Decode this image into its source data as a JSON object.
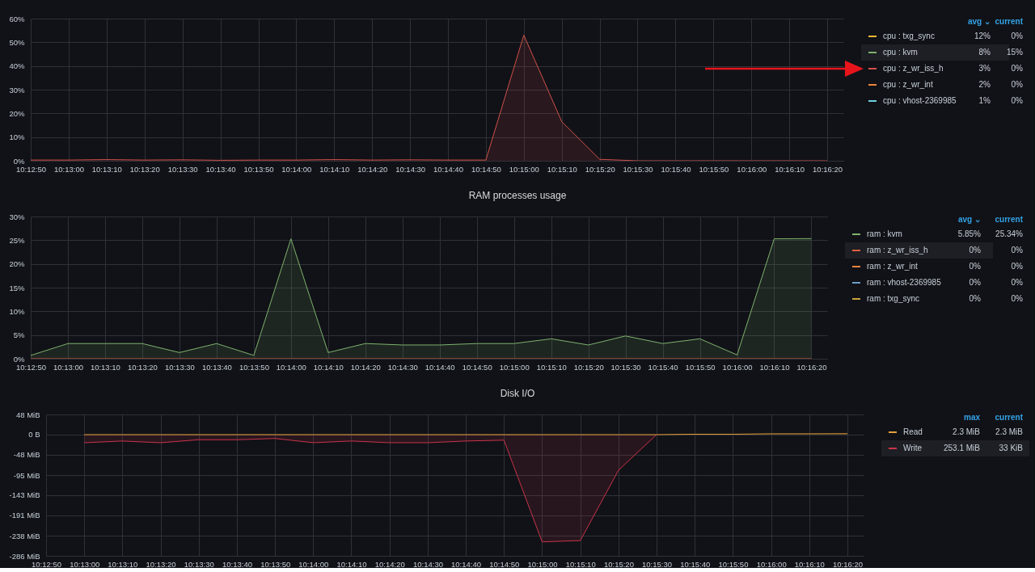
{
  "chart_data": [
    {
      "type": "area",
      "x": [
        10.21389,
        10.21667,
        10.21944,
        10.22222,
        10.225,
        10.22778,
        10.23056,
        10.23333,
        10.23611,
        10.23889,
        10.24167,
        10.24444,
        10.24722,
        10.25,
        10.25278,
        10.25556,
        10.25833,
        10.26111,
        10.26389,
        10.26667,
        10.26944,
        10.27222
      ],
      "xlim": [
        10.21389,
        10.2734
      ],
      "xticks": [
        {
          "value": 10.21389,
          "label": "10:12:50"
        },
        {
          "value": 10.21667,
          "label": "10:13:00"
        },
        {
          "value": 10.21944,
          "label": "10:13:10"
        },
        {
          "value": 10.22222,
          "label": "10:13:20"
        },
        {
          "value": 10.225,
          "label": "10:13:30"
        },
        {
          "value": 10.22778,
          "label": "10:13:40"
        },
        {
          "value": 10.23056,
          "label": "10:13:50"
        },
        {
          "value": 10.23333,
          "label": "10:14:00"
        },
        {
          "value": 10.23611,
          "label": "10:14:10"
        },
        {
          "value": 10.23889,
          "label": "10:14:20"
        },
        {
          "value": 10.24167,
          "label": "10:14:30"
        },
        {
          "value": 10.24444,
          "label": "10:14:40"
        },
        {
          "value": 10.24722,
          "label": "10:14:50"
        },
        {
          "value": 10.25,
          "label": "10:15:00"
        },
        {
          "value": 10.25278,
          "label": "10:15:10"
        },
        {
          "value": 10.25556,
          "label": "10:15:20"
        },
        {
          "value": 10.25833,
          "label": "10:15:30"
        },
        {
          "value": 10.26111,
          "label": "10:15:40"
        },
        {
          "value": 10.26389,
          "label": "10:15:50"
        },
        {
          "value": 10.26667,
          "label": "10:16:00"
        },
        {
          "value": 10.26944,
          "label": "10:16:10"
        },
        {
          "value": 10.27222,
          "label": "10:16:20"
        }
      ],
      "ylim": [
        0,
        60
      ],
      "yticks": [
        {
          "value": 0,
          "label": "0%"
        },
        {
          "value": 10,
          "label": "10%"
        },
        {
          "value": 20,
          "label": "20%"
        },
        {
          "value": 30,
          "label": "30%"
        },
        {
          "value": 40,
          "label": "40%"
        },
        {
          "value": 50,
          "label": "50%"
        },
        {
          "value": 60,
          "label": "60%"
        }
      ],
      "series": [
        {
          "name": "cpu : txg_sync",
          "color": "#EAB839",
          "values": [
            null,
            null,
            null,
            null,
            null,
            null,
            null,
            null,
            null,
            null,
            null,
            null,
            null,
            null,
            null,
            null,
            null,
            null,
            null,
            null,
            null,
            null
          ]
        },
        {
          "name": "cpu : kvm",
          "color": "#7EB26D",
          "values": [
            null,
            null,
            null,
            null,
            null,
            null,
            null,
            null,
            null,
            null,
            null,
            null,
            null,
            null,
            null,
            null,
            null,
            null,
            null,
            null,
            null,
            null
          ]
        },
        {
          "name": "cpu : z_wr_iss_h",
          "color": "#D0504A",
          "values": [
            0.3,
            0.3,
            0.5,
            0.3,
            0.4,
            0.2,
            0.3,
            0.3,
            0.5,
            0.3,
            0.4,
            0.3,
            0.3,
            53,
            16.5,
            0.6,
            0,
            0,
            0,
            0,
            0,
            0
          ]
        },
        {
          "name": "cpu : z_wr_int",
          "color": "#EF843C",
          "values": [
            null,
            null,
            null,
            null,
            null,
            null,
            null,
            null,
            null,
            null,
            null,
            null,
            null,
            null,
            null,
            null,
            null,
            null,
            null,
            null,
            null,
            null
          ]
        },
        {
          "name": "cpu : vhost-2369985",
          "color": "#6ED0E0",
          "values": [
            null,
            null,
            null,
            null,
            null,
            null,
            null,
            null,
            null,
            null,
            null,
            null,
            null,
            null,
            null,
            null,
            null,
            null,
            null,
            null,
            null,
            null
          ]
        }
      ],
      "annotations": [
        "avg ⌄",
        "current",
        "12%",
        "0%",
        "8%",
        "15%",
        "3%",
        "0%",
        "2%",
        "0%",
        "1%",
        "0%"
      ],
      "grid": true,
      "legend": "right"
    },
    {
      "type": "area",
      "title": "RAM processes usage",
      "x": [
        10.21389,
        10.21667,
        10.21944,
        10.22222,
        10.225,
        10.22778,
        10.23056,
        10.23333,
        10.23611,
        10.23889,
        10.24167,
        10.24444,
        10.24722,
        10.25,
        10.25278,
        10.25556,
        10.25833,
        10.26111,
        10.26389,
        10.26667,
        10.26944,
        10.27222
      ],
      "xlim": [
        10.21389,
        10.2734
      ],
      "xticks": [
        {
          "value": 10.21389,
          "label": "10:12:50"
        },
        {
          "value": 10.21667,
          "label": "10:13:00"
        },
        {
          "value": 10.21944,
          "label": "10:13:10"
        },
        {
          "value": 10.22222,
          "label": "10:13:20"
        },
        {
          "value": 10.225,
          "label": "10:13:30"
        },
        {
          "value": 10.22778,
          "label": "10:13:40"
        },
        {
          "value": 10.23056,
          "label": "10:13:50"
        },
        {
          "value": 10.23333,
          "label": "10:14:00"
        },
        {
          "value": 10.23611,
          "label": "10:14:10"
        },
        {
          "value": 10.23889,
          "label": "10:14:20"
        },
        {
          "value": 10.24167,
          "label": "10:14:30"
        },
        {
          "value": 10.24444,
          "label": "10:14:40"
        },
        {
          "value": 10.24722,
          "label": "10:14:50"
        },
        {
          "value": 10.25,
          "label": "10:15:00"
        },
        {
          "value": 10.25278,
          "label": "10:15:10"
        },
        {
          "value": 10.25556,
          "label": "10:15:20"
        },
        {
          "value": 10.25833,
          "label": "10:15:30"
        },
        {
          "value": 10.26111,
          "label": "10:15:40"
        },
        {
          "value": 10.26389,
          "label": "10:15:50"
        },
        {
          "value": 10.26667,
          "label": "10:16:00"
        },
        {
          "value": 10.26944,
          "label": "10:16:10"
        },
        {
          "value": 10.27222,
          "label": "10:16:20"
        }
      ],
      "ylim": [
        0,
        30
      ],
      "yticks": [
        {
          "value": 0,
          "label": "0%"
        },
        {
          "value": 5,
          "label": "5%"
        },
        {
          "value": 10,
          "label": "10%"
        },
        {
          "value": 15,
          "label": "15%"
        },
        {
          "value": 20,
          "label": "20%"
        },
        {
          "value": 25,
          "label": "25%"
        },
        {
          "value": 30,
          "label": "30%"
        }
      ],
      "series": [
        {
          "name": "ram : kvm",
          "color": "#7EB26D",
          "values": [
            0.7,
            3.2,
            3.2,
            3.2,
            1.3,
            3.2,
            0.7,
            25.3,
            1.3,
            3.2,
            2.9,
            2.9,
            3.2,
            3.2,
            4.2,
            2.9,
            4.8,
            3.2,
            4.2,
            0.8,
            25.3,
            25.34
          ]
        },
        {
          "name": "ram : z_wr_iss_h",
          "color": "#E0603F",
          "type": "line",
          "values": [
            0,
            0,
            0,
            0,
            0,
            0,
            0,
            0,
            0,
            0,
            0,
            0,
            0,
            0,
            0,
            0,
            0,
            0,
            0,
            0,
            0,
            0
          ]
        },
        {
          "name": "ram : z_wr_int",
          "color": "#EF843C",
          "values": [
            null,
            null,
            null,
            null,
            null,
            null,
            null,
            null,
            null,
            null,
            null,
            null,
            null,
            null,
            null,
            null,
            null,
            null,
            null,
            null,
            null,
            null
          ]
        },
        {
          "name": "ram : vhost-2369985",
          "color": "#6A9FC8",
          "values": [
            null,
            null,
            null,
            null,
            null,
            null,
            null,
            null,
            null,
            null,
            null,
            null,
            null,
            null,
            null,
            null,
            null,
            null,
            null,
            null,
            null,
            null
          ]
        },
        {
          "name": "ram : txg_sync",
          "color": "#C9A43A",
          "values": [
            null,
            null,
            null,
            null,
            null,
            null,
            null,
            null,
            null,
            null,
            null,
            null,
            null,
            null,
            null,
            null,
            null,
            null,
            null,
            null,
            null,
            null
          ]
        }
      ],
      "annotations": [
        "avg ⌄",
        "current",
        "5.85%",
        "25.34%",
        "0%",
        "0%",
        "0%",
        "0%",
        "0%",
        "0%",
        "0%",
        "0%"
      ],
      "grid": true,
      "legend": "right"
    },
    {
      "type": "area",
      "title": "Disk I/O",
      "x": [
        10.21667,
        10.21944,
        10.22222,
        10.225,
        10.22778,
        10.23056,
        10.23333,
        10.23611,
        10.23889,
        10.24167,
        10.24444,
        10.24722,
        10.25,
        10.25278,
        10.25556,
        10.25833,
        10.26111,
        10.26389,
        10.26667,
        10.26944,
        10.27222
      ],
      "xlim": [
        10.21389,
        10.2734
      ],
      "xticks": [
        {
          "value": 10.21389,
          "label": "10:12:50"
        },
        {
          "value": 10.21667,
          "label": "10:13:00"
        },
        {
          "value": 10.21944,
          "label": "10:13:10"
        },
        {
          "value": 10.22222,
          "label": "10:13:20"
        },
        {
          "value": 10.225,
          "label": "10:13:30"
        },
        {
          "value": 10.22778,
          "label": "10:13:40"
        },
        {
          "value": 10.23056,
          "label": "10:13:50"
        },
        {
          "value": 10.23333,
          "label": "10:14:00"
        },
        {
          "value": 10.23611,
          "label": "10:14:10"
        },
        {
          "value": 10.23889,
          "label": "10:14:20"
        },
        {
          "value": 10.24167,
          "label": "10:14:30"
        },
        {
          "value": 10.24444,
          "label": "10:14:40"
        },
        {
          "value": 10.24722,
          "label": "10:14:50"
        },
        {
          "value": 10.25,
          "label": "10:15:00"
        },
        {
          "value": 10.25278,
          "label": "10:15:10"
        },
        {
          "value": 10.25556,
          "label": "10:15:20"
        },
        {
          "value": 10.25833,
          "label": "10:15:30"
        },
        {
          "value": 10.26111,
          "label": "10:15:40"
        },
        {
          "value": 10.26389,
          "label": "10:15:50"
        },
        {
          "value": 10.26667,
          "label": "10:16:00"
        },
        {
          "value": 10.26944,
          "label": "10:16:10"
        },
        {
          "value": 10.27222,
          "label": "10:16:20"
        }
      ],
      "ylim": [
        -286.1,
        47.68
      ],
      "yticks": [
        {
          "value": 47.68,
          "label": "48 MiB"
        },
        {
          "value": 0,
          "label": "0 B"
        },
        {
          "value": -47.68,
          "label": "-48 MiB"
        },
        {
          "value": -95.37,
          "label": "-95 MiB"
        },
        {
          "value": -143.05,
          "label": "-143 MiB"
        },
        {
          "value": -190.73,
          "label": "-191 MiB"
        },
        {
          "value": -238.42,
          "label": "-238 MiB"
        },
        {
          "value": -286.1,
          "label": "-286 MiB"
        }
      ],
      "series": [
        {
          "name": "Read",
          "color": "#E5A03A",
          "values": [
            0,
            0,
            0,
            0,
            0,
            0,
            0,
            0,
            0,
            0,
            0,
            0,
            0,
            0,
            0,
            0,
            1,
            1,
            2,
            2,
            2.3
          ]
        },
        {
          "name": "Write",
          "color": "#C9344A",
          "values": [
            -19,
            -15,
            -19,
            -12,
            -12,
            -9,
            -19,
            -15,
            -19,
            -19,
            -15,
            -13,
            -253.1,
            -250,
            -84,
            0,
            null,
            null,
            null,
            null,
            null
          ]
        }
      ],
      "annotations": [
        "max",
        "current",
        "2.3 MiB",
        "2.3 MiB",
        "253.1 MiB",
        "33 KiB"
      ],
      "grid": true,
      "legend": "right"
    }
  ]
}
